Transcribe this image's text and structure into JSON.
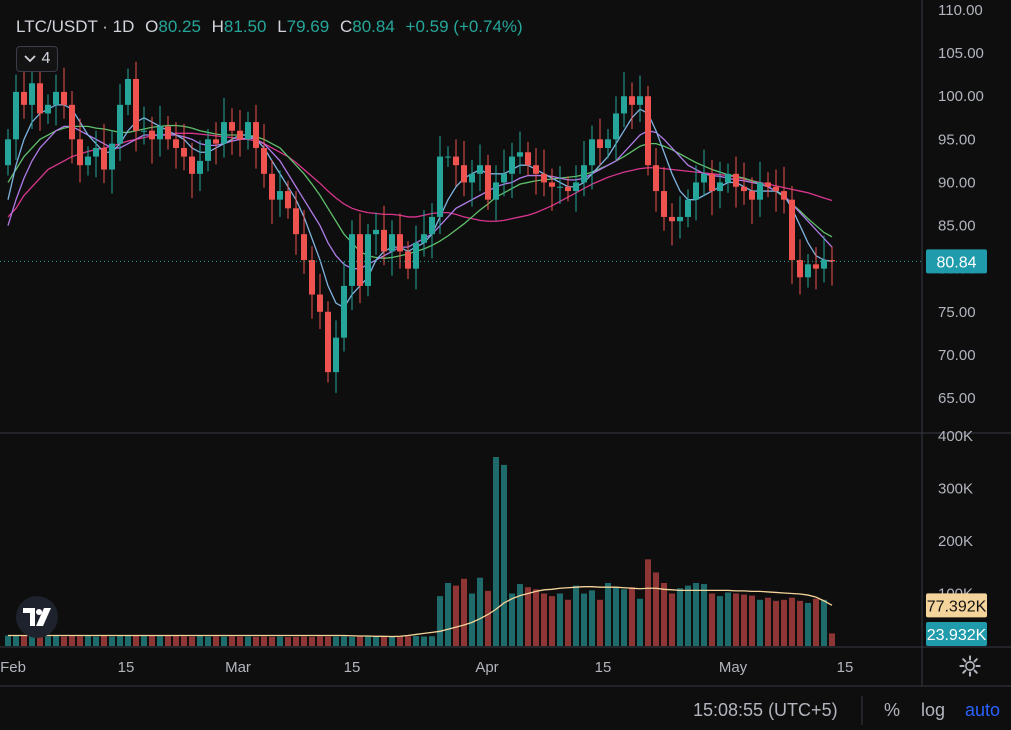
{
  "legend": {
    "symbol": "LTC/USDT · 1D",
    "open_label": "O",
    "open": "80.25",
    "high_label": "H",
    "high": "81.50",
    "low_label": "L",
    "low": "79.69",
    "close_label": "C",
    "close": "80.84",
    "change": "+0.59 (+0.74%)"
  },
  "indicator_count": "4",
  "price_badge": "80.84",
  "volume_badges": {
    "ma": "77.392K",
    "volume": "23.932K"
  },
  "status_bar": {
    "time": "15:08:55 (UTC+5)",
    "percent": "%",
    "log": "log",
    "auto": "auto"
  },
  "colors": {
    "up": "#26a69a",
    "down": "#ef5350",
    "vol_up": "#1f6b6b",
    "vol_down": "#8e3535",
    "ma_fast": "#7fb3e0",
    "ma_mid": "#b07ce8",
    "ma_slow": "#5fbf6a",
    "ma_long": "#d9368f",
    "vol_ma": "#f5d49b"
  },
  "chart_data": {
    "type": "candlestick",
    "title": "LTC/USDT · 1D",
    "price_axis": {
      "ticks": [
        "110.00",
        "105.00",
        "100.00",
        "95.00",
        "90.00",
        "85.00",
        "80.00",
        "75.00",
        "70.00",
        "65.00"
      ],
      "range": [
        62,
        110.5
      ]
    },
    "volume_axis": {
      "ticks": [
        "400K",
        "300K",
        "200K",
        "100K"
      ],
      "range": [
        0,
        400000
      ]
    },
    "time_axis": {
      "ticks": [
        "Feb",
        "15",
        "Mar",
        "15",
        "Apr",
        "15",
        "May",
        "15"
      ]
    },
    "closes": [
      95,
      100.5,
      99,
      101.5,
      98,
      99,
      100.5,
      99,
      95,
      92,
      93,
      94,
      91.5,
      94.5,
      99,
      102,
      96,
      96,
      95,
      96.5,
      95,
      94,
      93,
      91,
      92.5,
      95,
      94.5,
      97,
      96,
      95,
      97,
      94,
      91,
      88,
      89,
      87,
      84,
      81,
      77,
      75,
      68,
      72,
      78,
      84,
      78,
      84,
      84.5,
      82,
      84,
      82,
      80,
      83,
      84,
      86,
      93,
      93,
      92,
      90,
      91,
      92,
      88,
      90,
      91,
      93,
      93.5,
      92,
      91,
      90,
      89.5,
      89.5,
      89,
      90,
      92,
      95,
      94,
      95,
      98,
      100,
      99,
      100,
      92,
      89,
      86,
      85.5,
      86,
      88,
      90,
      91,
      89,
      90,
      91,
      89.5,
      89,
      88,
      90,
      89.5,
      89,
      88,
      81,
      79,
      80.5,
      80,
      81,
      80.84
    ],
    "volumes": [
      20000,
      19000,
      20000,
      19000,
      20000,
      18500,
      19000,
      18000,
      19000,
      18500,
      19000,
      18000,
      19000,
      18000,
      19000,
      21000,
      20000,
      19000,
      19500,
      19000,
      21000,
      19000,
      18500,
      18000,
      19000,
      18000,
      18500,
      18000,
      18500,
      18000,
      18000,
      17500,
      18000,
      17500,
      18000,
      17000,
      17500,
      18000,
      17500,
      18500,
      18000,
      18000,
      18500,
      17500,
      18000,
      18000,
      17500,
      18500,
      17500,
      18000,
      18500,
      19000,
      18000,
      18500,
      95000,
      120000,
      115000,
      128000,
      100000,
      130000,
      105000,
      360000,
      345000,
      100000,
      118000,
      112000,
      108000,
      100000,
      95000,
      100000,
      88000,
      115000,
      100000,
      106000,
      88000,
      120000,
      112000,
      108000,
      112000,
      90000,
      165000,
      140000,
      120000,
      100000,
      110000,
      115000,
      120000,
      118000,
      100000,
      95000,
      102000,
      100000,
      98000,
      96000,
      88000,
      92000,
      86000,
      88000,
      92000,
      86000,
      82000,
      90000,
      88000,
      23932
    ],
    "ma_fast": [
      88,
      92,
      95,
      97,
      98,
      98.5,
      99,
      99,
      98.5,
      97,
      95.5,
      94.5,
      93.5,
      93.5,
      94.5,
      96,
      97,
      97.5,
      97,
      96.5,
      96,
      95.5,
      95,
      94,
      93.5,
      93.5,
      94,
      94.5,
      95,
      95.5,
      95.5,
      95,
      94,
      92.5,
      91,
      89.5,
      88,
      86,
      83.5,
      81,
      78,
      76,
      75.5,
      77,
      78,
      79,
      81,
      82,
      82.5,
      82.5,
      82,
      82.5,
      83,
      84,
      86,
      88,
      89.5,
      90.5,
      91,
      91.5,
      91,
      91,
      91,
      91.5,
      92,
      92,
      91.5,
      91,
      90.5,
      90,
      89.5,
      89.5,
      90,
      91,
      92,
      93,
      94.5,
      96,
      97.5,
      98.5,
      98,
      96,
      93.5,
      91,
      89,
      88,
      88,
      88.5,
      89,
      89.5,
      90,
      90,
      89.5,
      89,
      89,
      89,
      89,
      88.5,
      87,
      85,
      83,
      81.5,
      81,
      80.84
    ],
    "ma_mid": [
      85,
      88,
      90.5,
      92.5,
      94,
      95,
      96,
      96.5,
      96.5,
      96,
      95.5,
      95,
      94.5,
      94,
      94,
      94.5,
      95,
      95.5,
      95.5,
      95.5,
      95.5,
      95.5,
      95.3,
      95,
      94.5,
      94.3,
      94.3,
      94.5,
      94.8,
      95,
      95.2,
      95,
      94.5,
      93.5,
      92.5,
      91,
      89.5,
      88,
      86.5,
      85,
      83,
      81.5,
      80.5,
      80,
      80,
      80.5,
      81,
      81.5,
      82,
      82.5,
      82.5,
      83,
      83.5,
      84,
      85,
      86,
      87,
      87.5,
      88,
      88.5,
      89,
      89.5,
      89.8,
      90,
      90.5,
      90.8,
      90.8,
      90.8,
      90.7,
      90.5,
      90.3,
      90.3,
      90.5,
      91,
      91.5,
      92,
      92.5,
      93.5,
      94.5,
      95.5,
      96,
      95.8,
      95,
      94,
      93,
      92,
      91.5,
      91,
      90.8,
      90.7,
      90.5,
      90.3,
      90.2,
      90,
      89.8,
      89.5,
      89,
      88.5,
      87.5,
      86.5,
      85.5,
      84.5,
      83.5,
      82.5
    ],
    "ma_slow": [
      90,
      91.5,
      93,
      94,
      95,
      95.5,
      96,
      96.3,
      96.5,
      96.5,
      96.5,
      96.3,
      96.2,
      96,
      95.8,
      95.8,
      96,
      96.2,
      96.4,
      96.5,
      96.6,
      96.6,
      96.5,
      96.3,
      96,
      95.8,
      95.6,
      95.5,
      95.5,
      95.5,
      95.5,
      95.3,
      95,
      94.5,
      94,
      93,
      92,
      91,
      89.8,
      88.5,
      87,
      85.5,
      84,
      83,
      82,
      81.5,
      81.3,
      81.2,
      81.3,
      81.5,
      81.7,
      82,
      82.3,
      82.7,
      83.2,
      83.8,
      84.5,
      85.2,
      86,
      86.8,
      87.5,
      88.3,
      88.8,
      89.3,
      89.8,
      90,
      90.2,
      90.3,
      90.4,
      90.5,
      90.6,
      90.7,
      90.9,
      91.2,
      91.6,
      92,
      92.5,
      93,
      93.6,
      94.2,
      94.5,
      94.5,
      94.2,
      93.8,
      93.3,
      92.8,
      92.3,
      91.9,
      91.5,
      91.2,
      90.9,
      90.7,
      90.5,
      90.2,
      89.9,
      89.5,
      89,
      88.3,
      87.5,
      86.7,
      85.8,
      85,
      84.2,
      83.7
    ],
    "ma_long": [
      86,
      87,
      88.5,
      89.5,
      90.5,
      91.5,
      92,
      92.5,
      93,
      93.3,
      93.6,
      93.8,
      94,
      94.2,
      94.5,
      94.8,
      95,
      95.2,
      95.4,
      95.5,
      95.6,
      95.7,
      95.7,
      95.7,
      95.6,
      95.5,
      95.4,
      95.3,
      95.2,
      95,
      95,
      94.8,
      94.5,
      94,
      93.5,
      93,
      92.3,
      91.5,
      90.7,
      89.9,
      89,
      88.2,
      87.5,
      87,
      86.7,
      86.5,
      86.4,
      86.3,
      86.3,
      86.2,
      86,
      86,
      86.2,
      86.4,
      86.5,
      86.5,
      86.3,
      86,
      85.8,
      85.6,
      85.5,
      85.5,
      85.6,
      85.8,
      86,
      86.2,
      86.5,
      86.9,
      87.3,
      87.8,
      88.3,
      88.8,
      89.3,
      89.8,
      90.2,
      90.6,
      90.9,
      91.2,
      91.4,
      91.6,
      91.7,
      91.7,
      91.6,
      91.5,
      91.4,
      91.3,
      91.2,
      91.1,
      91,
      90.9,
      90.8,
      90.6,
      90.4,
      90.2,
      90,
      89.8,
      89.6,
      89.4,
      89.2,
      89,
      88.8,
      88.5,
      88.2,
      87.9
    ],
    "vol_ma": [
      20000,
      20000,
      20000,
      20000,
      20000,
      20000,
      20000,
      20000,
      20000,
      20000,
      20000,
      20000,
      20000,
      20000,
      20000,
      20000,
      20000,
      20000,
      20000,
      20000,
      20000,
      20000,
      20000,
      20000,
      20000,
      20000,
      20000,
      20000,
      20000,
      20000,
      20000,
      20000,
      20000,
      20000,
      20000,
      20000,
      20000,
      20000,
      20000,
      20000,
      20000,
      20000,
      20000,
      19500,
      19000,
      19000,
      18500,
      18500,
      18000,
      18500,
      20000,
      22000,
      24000,
      26000,
      28000,
      32000,
      36000,
      40000,
      45000,
      52000,
      60000,
      70000,
      82000,
      90000,
      96000,
      100000,
      104000,
      107000,
      108000,
      110000,
      111000,
      112000,
      113000,
      113000,
      112000,
      112000,
      112000,
      111000,
      110000,
      109000,
      110000,
      110000,
      108000,
      107000,
      106000,
      106000,
      106000,
      106000,
      106000,
      106000,
      106000,
      105000,
      105000,
      104000,
      104000,
      103000,
      102000,
      101000,
      100000,
      99000,
      97000,
      93000,
      86000,
      77392
    ]
  }
}
